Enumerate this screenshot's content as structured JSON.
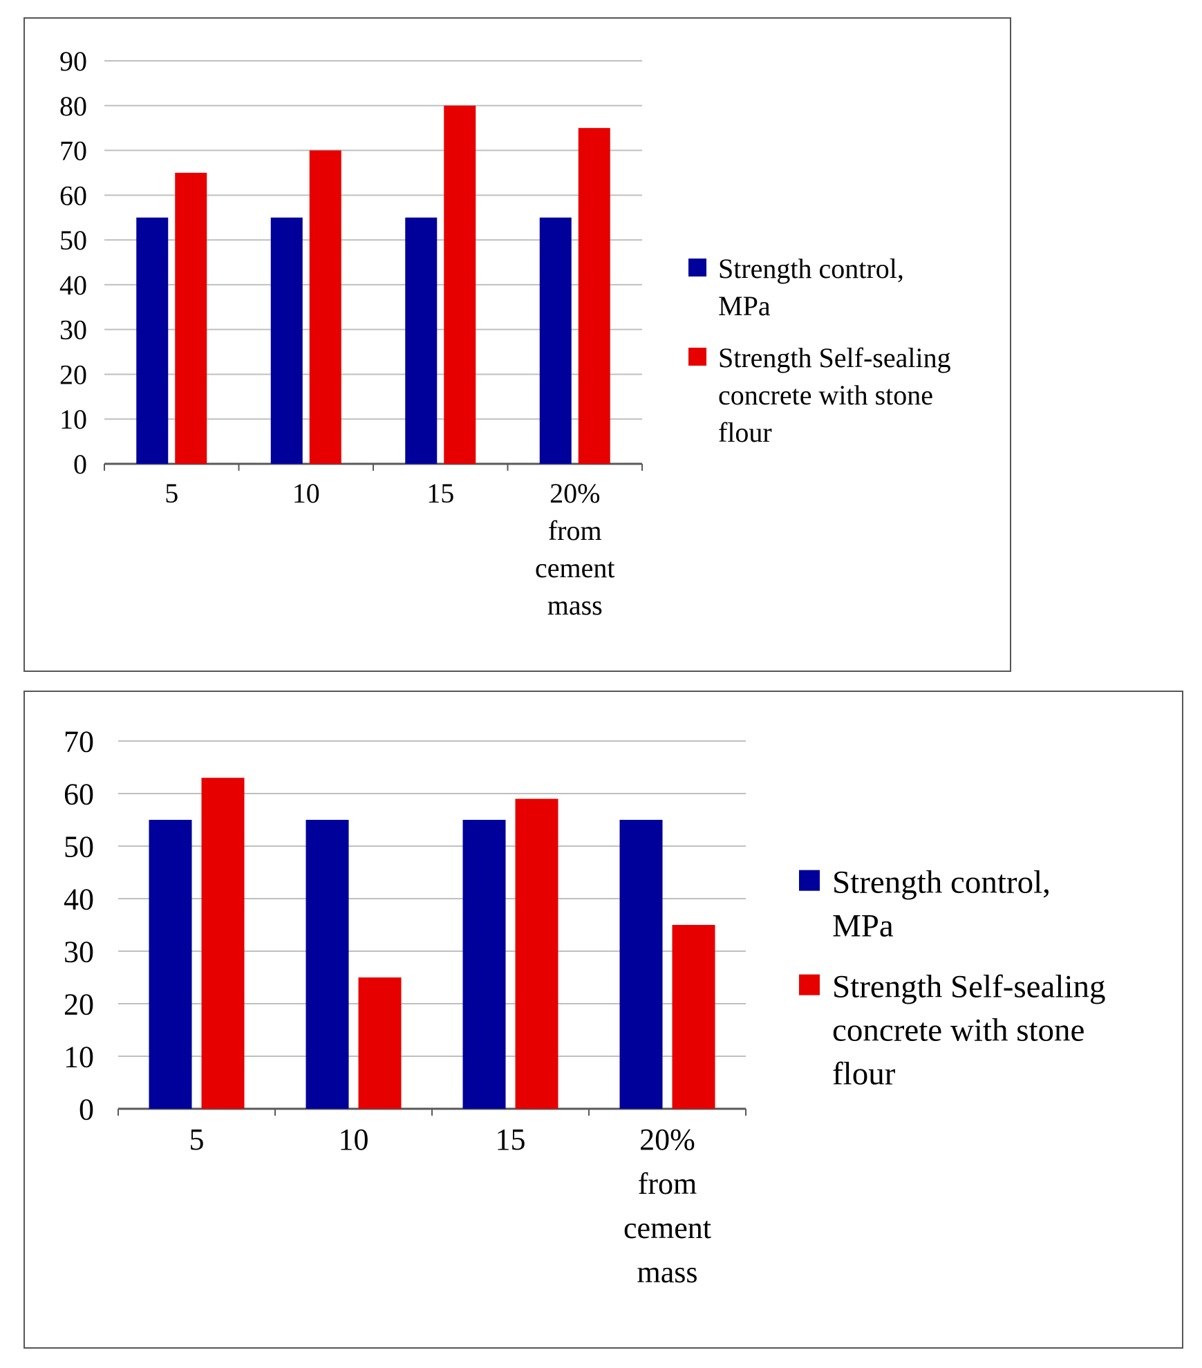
{
  "colors": {
    "control": "#00009a",
    "ssc": "#e60000",
    "grid": "#bfbfbf",
    "axis": "#595959"
  },
  "chart_data": [
    {
      "type": "bar",
      "title": "",
      "xlabel": "",
      "ylabel": "",
      "ylim": [
        0,
        90
      ],
      "yticks": [
        "0",
        "10",
        "20",
        "30",
        "40",
        "50",
        "60",
        "70",
        "80",
        "90"
      ],
      "categories": [
        [
          "5"
        ],
        [
          "10"
        ],
        [
          "15"
        ],
        [
          "20%",
          "from",
          "cement",
          "mass"
        ]
      ],
      "series": [
        {
          "name": [
            "Strength control,",
            "MPa"
          ],
          "values": [
            55,
            55,
            55,
            55
          ],
          "color": "#00009a"
        },
        {
          "name": [
            "Strength Self-sealing",
            "concrete with stone",
            "flour"
          ],
          "values": [
            65,
            70,
            80,
            75
          ],
          "color": "#e60000"
        }
      ],
      "grid": true,
      "legend": "right"
    },
    {
      "type": "bar",
      "title": "",
      "xlabel": "",
      "ylabel": "",
      "ylim": [
        0,
        70
      ],
      "yticks": [
        "0",
        "10",
        "20",
        "30",
        "40",
        "50",
        "60",
        "70"
      ],
      "categories": [
        [
          "5"
        ],
        [
          "10"
        ],
        [
          "15"
        ],
        [
          "20%",
          "from",
          "cement",
          "mass"
        ]
      ],
      "series": [
        {
          "name": [
            "Strength control,",
            "MPa"
          ],
          "values": [
            55,
            55,
            55,
            55
          ],
          "color": "#00009a"
        },
        {
          "name": [
            "Strength Self-sealing",
            "concrete with stone",
            "flour"
          ],
          "values": [
            63,
            25,
            59,
            35
          ],
          "color": "#e60000"
        }
      ],
      "grid": true,
      "legend": "right"
    }
  ]
}
